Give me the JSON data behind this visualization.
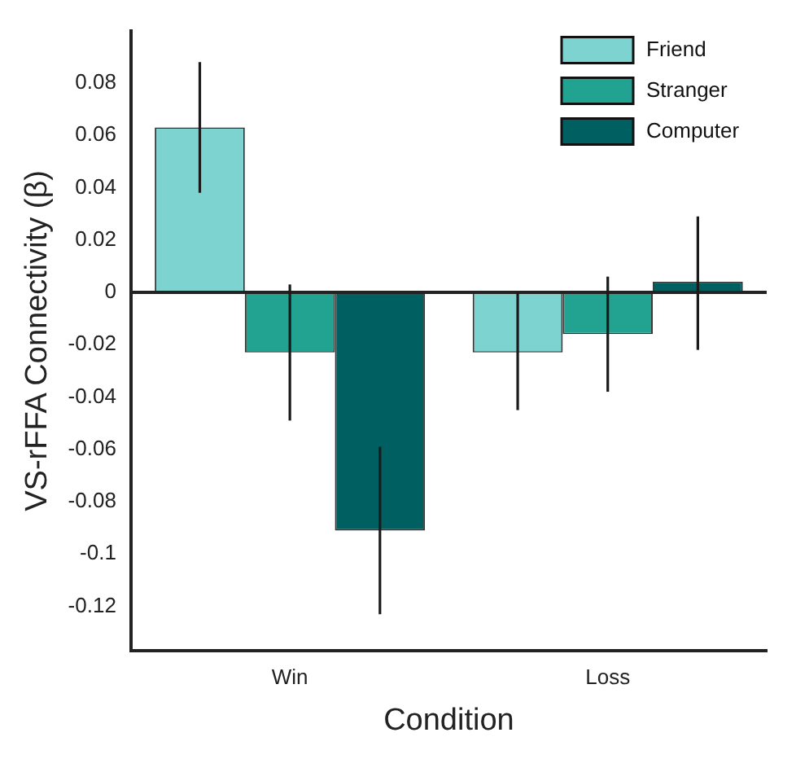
{
  "chart_data": {
    "type": "bar",
    "xlabel": "Condition",
    "ylabel": "VS-rFFA Connectivity (β)",
    "categories": [
      "Win",
      "Loss"
    ],
    "series": [
      {
        "name": "Friend",
        "color": "#7dd3d0",
        "values": [
          0.063,
          -0.023
        ],
        "errors": [
          [
            0.038,
            0.088
          ],
          [
            -0.045,
            0
          ]
        ]
      },
      {
        "name": "Stranger",
        "color": "#22a392",
        "values": [
          -0.023,
          -0.016
        ],
        "errors": [
          [
            -0.049,
            0.003
          ],
          [
            -0.038,
            0.006
          ]
        ]
      },
      {
        "name": "Computer",
        "color": "#005f61",
        "values": [
          -0.091,
          0.004
        ],
        "errors": [
          [
            -0.123,
            -0.059
          ],
          [
            -0.022,
            0.029
          ]
        ]
      }
    ],
    "ylim": [
      -0.137,
      0.1
    ],
    "yticks": [
      0.08,
      0.06,
      0.04,
      0.02,
      0,
      -0.02,
      -0.04,
      -0.06,
      -0.08,
      -0.1,
      -0.12
    ],
    "ref_lines": [
      {
        "axis": "y",
        "value": 0
      }
    ],
    "legend": "top right",
    "grid": false
  }
}
